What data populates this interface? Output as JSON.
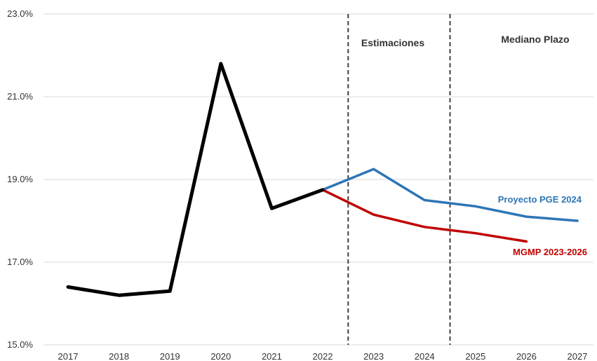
{
  "chart_data": {
    "type": "line",
    "title": "",
    "xlabel": "",
    "ylabel": "",
    "x": [
      "2017",
      "2018",
      "2019",
      "2020",
      "2021",
      "2022",
      "2023",
      "2024",
      "2025",
      "2026",
      "2027"
    ],
    "ylim": [
      15.0,
      23.0
    ],
    "yticks": [
      15.0,
      17.0,
      19.0,
      21.0,
      23.0
    ],
    "ytick_labels": [
      "15.0%",
      "17.0%",
      "19.0%",
      "21.0%",
      "23.0%"
    ],
    "grid": "horizontal",
    "series": [
      {
        "name": "",
        "color": "#000000",
        "points": [
          {
            "x": "2017",
            "y": 16.4
          },
          {
            "x": "2018",
            "y": 16.2
          },
          {
            "x": "2019",
            "y": 16.3
          },
          {
            "x": "2020",
            "y": 21.8
          },
          {
            "x": "2021",
            "y": 18.3
          },
          {
            "x": "2022",
            "y": 18.75
          }
        ]
      },
      {
        "name": "Proyecto PGE 2024",
        "color": "#2E75B6",
        "points": [
          {
            "x": "2022",
            "y": 18.75
          },
          {
            "x": "2023",
            "y": 19.25
          },
          {
            "x": "2024",
            "y": 18.5
          },
          {
            "x": "2025",
            "y": 18.35
          },
          {
            "x": "2026",
            "y": 18.1
          },
          {
            "x": "2027",
            "y": 18.0
          }
        ]
      },
      {
        "name": "MGMP 2023-2026",
        "color": "#C00000",
        "points": [
          {
            "x": "2022",
            "y": 18.75
          },
          {
            "x": "2023",
            "y": 18.15
          },
          {
            "x": "2024",
            "y": 17.85
          },
          {
            "x": "2025",
            "y": 17.7
          },
          {
            "x": "2026",
            "y": 17.5
          }
        ]
      }
    ],
    "region_labels": [
      "Estimaciones",
      "Mediano Plazo"
    ],
    "divider_lines_between": [
      [
        "2022",
        "2023"
      ],
      [
        "2024",
        "2025"
      ]
    ]
  }
}
